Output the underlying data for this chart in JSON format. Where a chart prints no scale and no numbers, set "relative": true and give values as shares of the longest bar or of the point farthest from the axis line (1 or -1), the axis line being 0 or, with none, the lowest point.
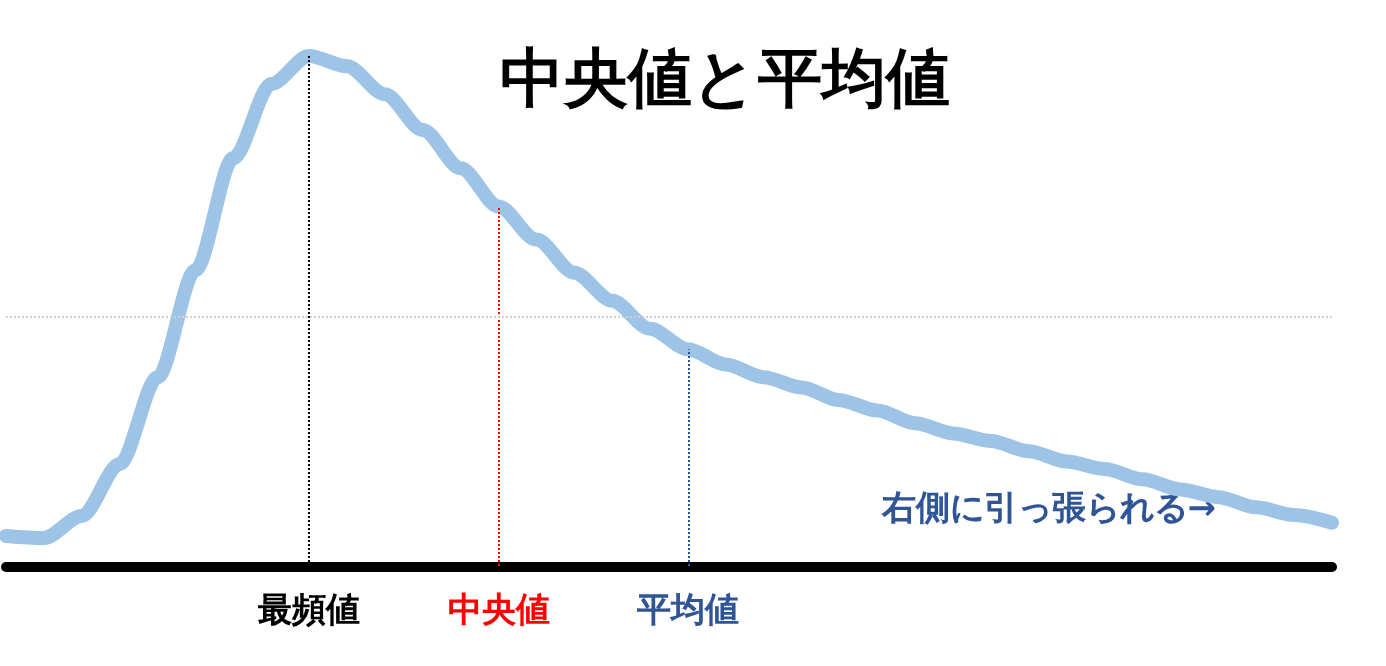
{
  "chart_data": {
    "type": "line",
    "title": "中央値と平均値",
    "relative": true,
    "grid": false,
    "categories": [
      null,
      null,
      null,
      null,
      null,
      null,
      null,
      null,
      "最頻値",
      null,
      null,
      null,
      null,
      "中央値",
      null,
      null,
      null,
      null,
      "平均値",
      null,
      null,
      null,
      null,
      null,
      null,
      null,
      null,
      null,
      null,
      null,
      null,
      null,
      null,
      null,
      null,
      null
    ],
    "series": [
      {
        "color": "#9dc3e6",
        "values": [
          0.059,
          0.055,
          0.098,
          0.2,
          0.37,
          0.58,
          0.8,
          0.945,
          1.0,
          0.98,
          0.925,
          0.855,
          0.78,
          0.705,
          0.64,
          0.575,
          0.52,
          0.465,
          0.425,
          0.395,
          0.37,
          0.35,
          0.325,
          0.305,
          0.28,
          0.26,
          0.245,
          0.225,
          0.205,
          0.19,
          0.17,
          0.15,
          0.135,
          0.115,
          0.1,
          0.085
        ]
      }
    ],
    "ref_lines": [
      {
        "axis": "x",
        "value": "最頻値",
        "color": "#000000",
        "line_style": "dotted"
      },
      {
        "axis": "x",
        "value": "中央値",
        "color": "#ff0000",
        "line_style": "dotted"
      },
      {
        "axis": "x",
        "value": "平均値",
        "color": "#2f5597",
        "line_style": "dotted"
      },
      {
        "axis": "y",
        "value": 0.49,
        "color": "#d0d0d0",
        "line_style": "dotted"
      }
    ],
    "annotations": [
      "右側に引っ張られる→"
    ]
  }
}
